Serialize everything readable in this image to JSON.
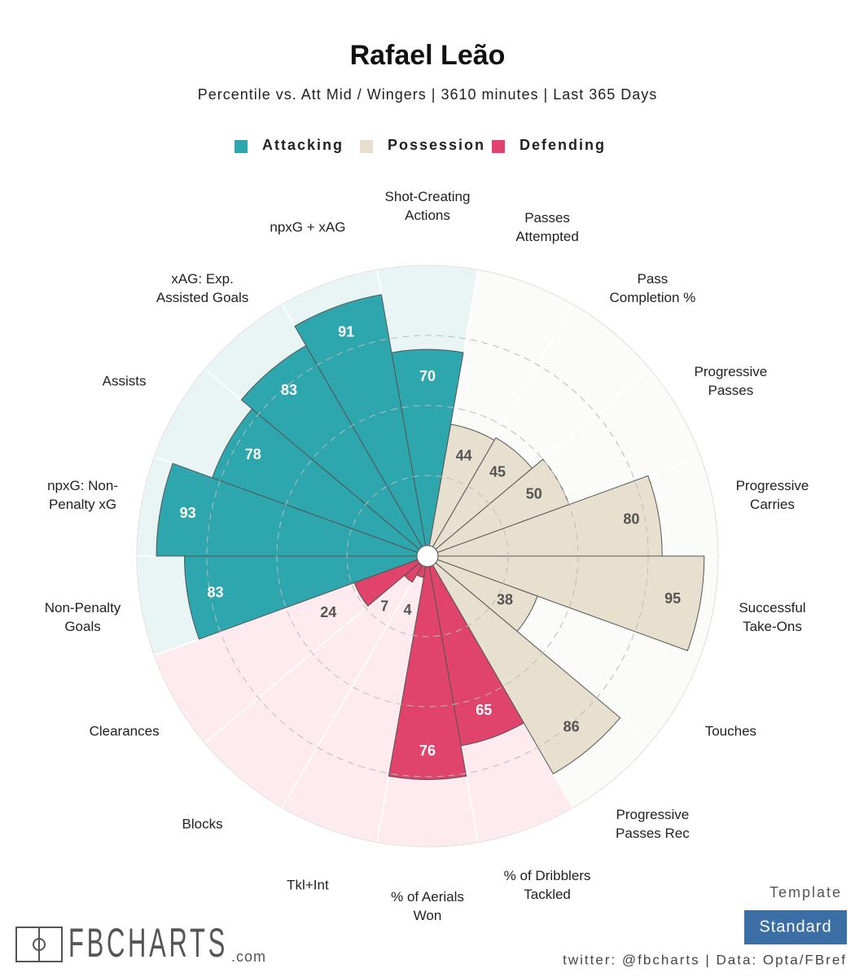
{
  "chart_data": {
    "type": "pizza",
    "title": "Rafael Leão",
    "subtitle": "Percentile vs. Att Mid / Wingers | 3610 minutes | Last 365 Days",
    "ylim": [
      0,
      100
    ],
    "yticks": [
      25,
      50,
      75
    ],
    "grid": true,
    "series": [
      {
        "name": "Possession",
        "color": "#e8e0ce",
        "background": "#fbfbf9",
        "label_color": "#555555",
        "categories": [
          "Passes\nAttempted",
          "Pass\nCompletion %",
          "Progressive\nPasses",
          "Progressive\nCarries",
          "Successful\nTake-Ons",
          "Touches",
          "Progressive\nPasses Rec"
        ],
        "values": [
          44,
          45,
          50,
          80,
          95,
          38,
          86
        ]
      },
      {
        "name": "Defending",
        "color": "#e0436b",
        "background": "#fdebef",
        "label_color": "#ffffff",
        "categories": [
          "% of Dribblers\nTackled",
          "% of Aerials\nWon",
          "Tkl+Int",
          "Blocks",
          "Clearances"
        ],
        "values": [
          65,
          76,
          4,
          7,
          24
        ]
      },
      {
        "name": "Attacking",
        "color": "#2ea6ad",
        "background": "#e9f5f5",
        "label_color": "#ffffff",
        "categories": [
          "Non-Penalty\nGoals",
          "npxG: Non-\nPenalty xG",
          "Assists",
          "xAG: Exp.\nAssisted Goals",
          "npxG + xAG",
          "Shot-Creating\nActions"
        ],
        "values": [
          83,
          93,
          78,
          83,
          91,
          70
        ]
      }
    ]
  },
  "footer": {
    "template_label": "Template",
    "template": "Standard",
    "credit": "twitter: @fbcharts | Data: Opta/FBref",
    "logo": "FBCHARTS",
    "logo_suffix": ".com"
  }
}
